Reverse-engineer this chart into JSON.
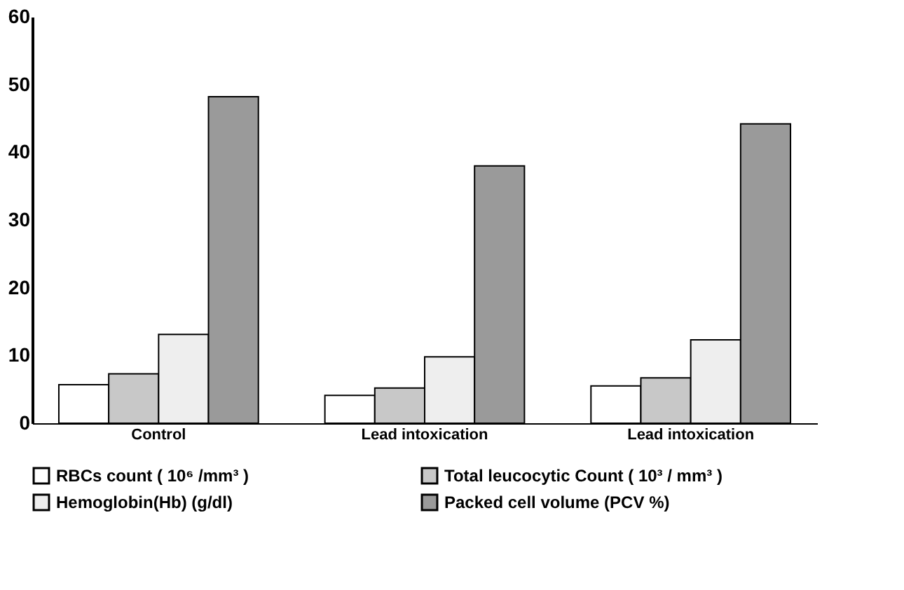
{
  "chart_data": {
    "type": "bar",
    "categories": [
      "Control",
      "Lead intoxication",
      "Lead intoxication"
    ],
    "series": [
      {
        "name": "RBCs count ( 10⁶ /mm³ )",
        "color": "#ffffff",
        "values": [
          5.7,
          4.1,
          5.5
        ]
      },
      {
        "name": "Total leucocytic Count ( 10³ / mm³ )",
        "color": "#c8c8c8",
        "values": [
          7.3,
          5.2,
          6.7
        ]
      },
      {
        "name": "Hemoglobin(Hb)  (g/dl)",
        "color": "#eeeeee",
        "values": [
          13.1,
          9.8,
          12.3
        ]
      },
      {
        "name": "Packed cell volume (PCV %)",
        "color": "#9a9a9a",
        "values": [
          48.2,
          38.0,
          44.2
        ]
      }
    ],
    "ylim": [
      0,
      60
    ],
    "yticks": [
      0,
      10,
      20,
      30,
      40,
      50,
      60
    ],
    "grid": false,
    "legend": "bottom"
  }
}
